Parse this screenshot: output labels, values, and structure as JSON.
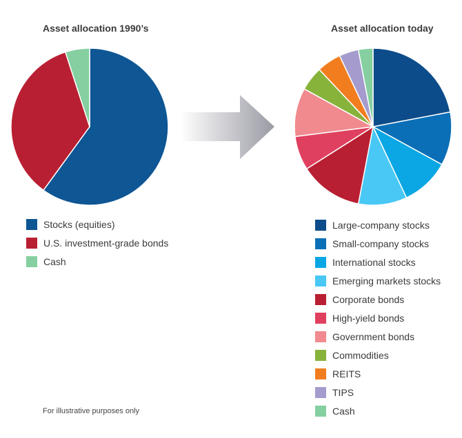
{
  "chart_data": [
    {
      "type": "pie",
      "title": "Asset allocation 1990’s",
      "slices": [
        {
          "label": "Stocks (equities)",
          "value": 60,
          "color": "#0e5694"
        },
        {
          "label": "U.S. investment-grade bonds",
          "value": 35,
          "color": "#b91f32"
        },
        {
          "label": "Cash",
          "value": 5,
          "color": "#85cfa0"
        }
      ],
      "legend_placement": "bottom"
    },
    {
      "type": "pie",
      "title": "Asset allocation today",
      "slices": [
        {
          "label": "Large-company stocks",
          "value": 22,
          "color": "#0d4c8a"
        },
        {
          "label": "Small-company stocks",
          "value": 11,
          "color": "#0a6fb7"
        },
        {
          "label": "International stocks",
          "value": 10,
          "color": "#0aa7e4"
        },
        {
          "label": "Emerging markets stocks",
          "value": 10,
          "color": "#49c8f5"
        },
        {
          "label": "Corporate bonds",
          "value": 13,
          "color": "#b91f32"
        },
        {
          "label": "High-yield bonds",
          "value": 7,
          "color": "#e0405f"
        },
        {
          "label": "Government bonds",
          "value": 10,
          "color": "#f08a8e"
        },
        {
          "label": "Commodities",
          "value": 5,
          "color": "#87b33b"
        },
        {
          "label": "REITS",
          "value": 5,
          "color": "#f27d1f"
        },
        {
          "label": "TIPS",
          "value": 4,
          "color": "#a59ccd"
        },
        {
          "label": "Cash",
          "value": 3,
          "color": "#85cfa0"
        }
      ],
      "legend_placement": "bottom"
    }
  ],
  "footnote": "For illustrative purposes only",
  "colors": {
    "arrow_dark": "#9a9aa4",
    "arrow_light": "#ffffff"
  }
}
